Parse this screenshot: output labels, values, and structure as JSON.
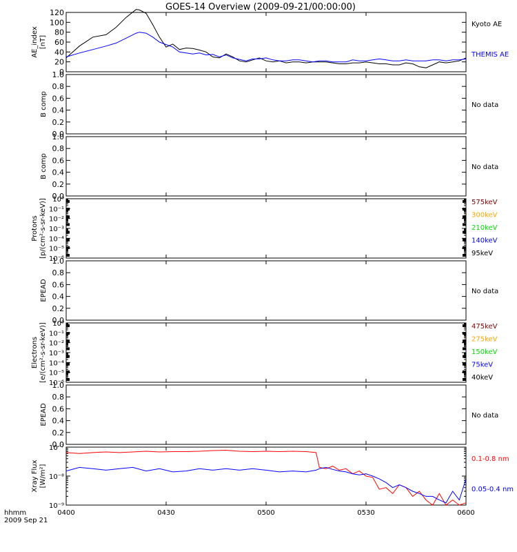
{
  "title": "GOES-14 Overview (2009-09-21/00:00:00)",
  "footer": {
    "time_label": "hhmm",
    "date_label": "2009 Sep 21"
  },
  "x_axis": {
    "range": [
      "0400",
      "0600"
    ],
    "tick_labels": [
      "0400",
      "0430",
      "0500",
      "0530",
      "0600"
    ]
  },
  "colors": {
    "black": "#000000",
    "blue": "#0000ff",
    "red": "#ff0000",
    "darkred": "#800000",
    "orange": "#ffa500",
    "green": "#00dd00"
  },
  "chart_data": [
    {
      "type": "line",
      "ylabel": "AE_index",
      "yunit": "[nT]",
      "ylim": [
        0,
        120
      ],
      "yticks": [
        "0",
        "20",
        "40",
        "60",
        "80",
        "100",
        "120"
      ],
      "x_minutes_after_0400": [
        0,
        4,
        8,
        12,
        15,
        18,
        21,
        22,
        24,
        26,
        28,
        30,
        32,
        34,
        36,
        38,
        40,
        42,
        44,
        46,
        48,
        50,
        52,
        54,
        56,
        58,
        60,
        62,
        64,
        66,
        68,
        70,
        72,
        74,
        76,
        78,
        80,
        82,
        84,
        86,
        88,
        90,
        92,
        94,
        96,
        98,
        100,
        102,
        104,
        106,
        108,
        110,
        112,
        114,
        116,
        118,
        120
      ],
      "series": [
        {
          "name": "Kyoto AE",
          "color": "#000000",
          "values": [
            28,
            52,
            70,
            75,
            90,
            110,
            126,
            125,
            118,
            95,
            70,
            50,
            56,
            45,
            48,
            47,
            44,
            40,
            30,
            28,
            36,
            30,
            22,
            20,
            24,
            28,
            22,
            20,
            22,
            18,
            20,
            20,
            18,
            20,
            20,
            20,
            18,
            16,
            16,
            18,
            18,
            20,
            18,
            16,
            16,
            14,
            14,
            18,
            16,
            10,
            8,
            14,
            20,
            18,
            20,
            22,
            28
          ]
        },
        {
          "name": "THEMIS AE",
          "color": "#0000ff",
          "values": [
            30,
            38,
            45,
            52,
            58,
            68,
            78,
            80,
            78,
            70,
            60,
            55,
            50,
            40,
            38,
            36,
            38,
            34,
            35,
            30,
            34,
            28,
            25,
            22,
            26,
            26,
            28,
            24,
            22,
            22,
            24,
            24,
            22,
            20,
            22,
            22,
            20,
            20,
            20,
            24,
            22,
            22,
            24,
            26,
            24,
            22,
            22,
            24,
            22,
            22,
            22,
            24,
            24,
            22,
            24,
            24,
            26
          ]
        }
      ],
      "legend": [
        "Kyoto AE",
        "THEMIS AE"
      ]
    },
    {
      "type": "line",
      "ylabel": "B comp",
      "ylim": [
        0,
        1
      ],
      "yticks": [
        "0.0",
        "0.2",
        "0.4",
        "0.6",
        "0.8",
        "1.0"
      ],
      "series": [],
      "note": "No data"
    },
    {
      "type": "line",
      "ylabel": "B comp",
      "ylim": [
        0,
        1
      ],
      "yticks": [
        "0.0",
        "0.2",
        "0.4",
        "0.6",
        "0.8",
        "1.0"
      ],
      "series": [],
      "note": "No data"
    },
    {
      "type": "line",
      "ylabel": "Protons",
      "yunit": "[p/(cm²-s-sr-keV)]",
      "yscale": "log",
      "ylim": [
        1e-06,
        1
      ],
      "yticks": [
        "10⁻⁶",
        "10⁻⁵",
        "10⁻⁴",
        "10⁻³",
        "10⁻²",
        "10⁻¹",
        "10⁰"
      ],
      "series": [],
      "legend": [
        {
          "label": "575keV",
          "color": "#800000"
        },
        {
          "label": "300keV",
          "color": "#ffa500"
        },
        {
          "label": "210keV",
          "color": "#00dd00"
        },
        {
          "label": "140keV",
          "color": "#0000ff"
        },
        {
          "label": "95keV",
          "color": "#000000"
        }
      ]
    },
    {
      "type": "line",
      "ylabel": "EPEAD",
      "ylim": [
        0,
        1
      ],
      "yticks": [
        "0.0",
        "0.2",
        "0.4",
        "0.6",
        "0.8",
        "1.0"
      ],
      "series": [],
      "note": "No data"
    },
    {
      "type": "line",
      "ylabel": "Electrons",
      "yunit": "[e/(cm²-s-sr-keV)]",
      "yscale": "log",
      "ylim": [
        1e-06,
        1
      ],
      "yticks": [
        "10⁻⁶",
        "10⁻⁵",
        "10⁻⁴",
        "10⁻³",
        "10⁻²",
        "10⁻¹",
        "10⁰"
      ],
      "series": [],
      "legend": [
        {
          "label": "475keV",
          "color": "#800000"
        },
        {
          "label": "275keV",
          "color": "#ffa500"
        },
        {
          "label": "150keV",
          "color": "#00dd00"
        },
        {
          "label": "75keV",
          "color": "#0000ff"
        },
        {
          "label": "40keV",
          "color": "#000000"
        }
      ]
    },
    {
      "type": "line",
      "ylabel": "EPEAD",
      "ylim": [
        0,
        1
      ],
      "yticks": [
        "0.0",
        "0.2",
        "0.4",
        "0.6",
        "0.8",
        "1.0"
      ],
      "series": [],
      "note": "No data"
    },
    {
      "type": "line",
      "ylabel": "Xray Flux",
      "yunit": "[W/m²]",
      "yscale": "log",
      "ylim": [
        1e-09,
        1e-07
      ],
      "yticks": [
        "10⁻⁹",
        "10⁻⁸",
        "10⁻⁷"
      ],
      "x_minutes_after_0400": [
        0,
        4,
        8,
        12,
        16,
        20,
        24,
        28,
        32,
        36,
        40,
        44,
        48,
        52,
        56,
        60,
        64,
        68,
        72,
        75,
        76,
        78,
        80,
        82,
        84,
        86,
        88,
        90,
        92,
        94,
        96,
        98,
        100,
        102,
        104,
        106,
        108,
        110,
        112,
        114,
        116,
        118,
        120
      ],
      "series": [
        {
          "name": "0.1-0.8 nm",
          "color": "#ff0000",
          "values": [
            6.5e-08,
            6e-08,
            6.5e-08,
            6.8e-08,
            6.5e-08,
            6.8e-08,
            7.2e-08,
            6.8e-08,
            7e-08,
            7e-08,
            7.2e-08,
            7.6e-08,
            7.8e-08,
            7.2e-08,
            7e-08,
            7.2e-08,
            7e-08,
            7.2e-08,
            7e-08,
            6.5e-08,
            2e-08,
            1.8e-08,
            2.2e-08,
            1.6e-08,
            1.8e-08,
            1.2e-08,
            1.5e-08,
            1e-08,
            9e-09,
            3.5e-09,
            4e-09,
            2.5e-09,
            5e-09,
            4e-09,
            2e-09,
            3e-09,
            1.5e-09,
            1e-09,
            2.5e-09,
            1e-09,
            1.5e-09,
            1e-09,
            1.2e-09
          ]
        },
        {
          "name": "0.05-0.4 nm",
          "color": "#0000ff",
          "values": [
            1.5e-08,
            2e-08,
            1.8e-08,
            1.6e-08,
            1.8e-08,
            2e-08,
            1.5e-08,
            1.8e-08,
            1.4e-08,
            1.5e-08,
            1.8e-08,
            1.6e-08,
            1.8e-08,
            1.6e-08,
            1.8e-08,
            1.6e-08,
            1.4e-08,
            1.5e-08,
            1.4e-08,
            1.6e-08,
            1.8e-08,
            2e-08,
            1.7e-08,
            1.5e-08,
            1.4e-08,
            1.2e-08,
            1.1e-08,
            1.2e-08,
            1e-08,
            8e-09,
            6e-09,
            4e-09,
            5e-09,
            4e-09,
            3e-09,
            2.5e-09,
            2e-09,
            2e-09,
            1.5e-09,
            1.2e-09,
            3e-09,
            1.5e-09,
            8e-09
          ]
        }
      ],
      "legend": [
        "0.1-0.8 nm",
        "0.05-0.4 nm"
      ]
    }
  ]
}
